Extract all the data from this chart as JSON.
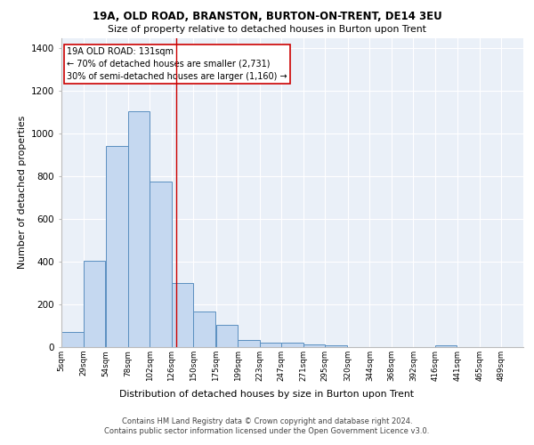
{
  "title1": "19A, OLD ROAD, BRANSTON, BURTON-ON-TRENT, DE14 3EU",
  "title2": "Size of property relative to detached houses in Burton upon Trent",
  "xlabel": "Distribution of detached houses by size in Burton upon Trent",
  "ylabel": "Number of detached properties",
  "footer1": "Contains HM Land Registry data © Crown copyright and database right 2024.",
  "footer2": "Contains public sector information licensed under the Open Government Licence v3.0.",
  "annotation_line1": "19A OLD ROAD: 131sqm",
  "annotation_line2": "← 70% of detached houses are smaller (2,731)",
  "annotation_line3": "30% of semi-detached houses are larger (1,160) →",
  "bar_color": "#c5d8f0",
  "bar_edge_color": "#5a8fc0",
  "vline_color": "#cc0000",
  "vline_sqm": 131,
  "categories": [
    "5sqm",
    "29sqm",
    "54sqm",
    "78sqm",
    "102sqm",
    "126sqm",
    "150sqm",
    "175sqm",
    "199sqm",
    "223sqm",
    "247sqm",
    "271sqm",
    "295sqm",
    "320sqm",
    "344sqm",
    "368sqm",
    "392sqm",
    "416sqm",
    "441sqm",
    "465sqm",
    "489sqm"
  ],
  "bin_edges": [
    5,
    29,
    54,
    78,
    102,
    126,
    150,
    175,
    199,
    223,
    247,
    271,
    295,
    320,
    344,
    368,
    392,
    416,
    441,
    465,
    489
  ],
  "bin_width": 24,
  "values": [
    70,
    405,
    945,
    1105,
    775,
    300,
    168,
    105,
    35,
    20,
    20,
    12,
    10,
    0,
    0,
    0,
    0,
    10,
    0,
    0,
    0
  ],
  "ylim": [
    0,
    1450
  ],
  "yticks": [
    0,
    200,
    400,
    600,
    800,
    1000,
    1200,
    1400
  ],
  "plot_bg_color": "#eaf0f8",
  "grid_color": "#ffffff"
}
